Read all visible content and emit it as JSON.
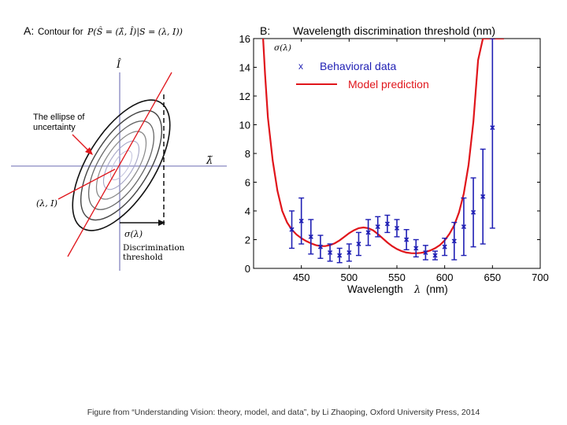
{
  "panel_a": {
    "label": "A:",
    "title_text": "Contour for",
    "title_formula": "P(Ŝ = (λ̂, Î)|S = (λ, I))",
    "y_axis_label": "Î",
    "x_axis_label": "λ̃",
    "ellipse_label_line1": "The ellipse of",
    "ellipse_label_line2": "uncertainty",
    "point_label": "(λ, I)",
    "sigma_label": "σ(λ)",
    "threshold_line1": "Discrimination",
    "threshold_line2": "threshold"
  },
  "chart_data": {
    "type": "line",
    "panel_label": "B:",
    "title": "Wavelength discrimination threshold (nm)",
    "y_corner_label": "σ(λ)",
    "xlabel": "Wavelength",
    "xlabel_symbol": "λ",
    "xlabel_unit": "(nm)",
    "xlim": [
      400,
      700
    ],
    "ylim": [
      0,
      16
    ],
    "x_ticks": [
      450,
      500,
      550,
      600,
      650,
      700
    ],
    "y_ticks": [
      0,
      2,
      4,
      6,
      8,
      10,
      12,
      14,
      16
    ],
    "legend": {
      "placement": "top-left",
      "entries": [
        {
          "marker": "x",
          "label": "Behavioral data",
          "color": "#1f1fb4"
        },
        {
          "marker": "line",
          "label": "Model prediction",
          "color": "#e0151b"
        }
      ]
    },
    "series": [
      {
        "name": "Behavioral data",
        "type": "scatter-errorbar",
        "color": "#1f1fb4",
        "points": [
          {
            "x": 440,
            "y": 2.7,
            "err": 1.3
          },
          {
            "x": 450,
            "y": 3.3,
            "err": 1.6
          },
          {
            "x": 460,
            "y": 2.2,
            "err": 1.2
          },
          {
            "x": 470,
            "y": 1.5,
            "err": 0.8
          },
          {
            "x": 480,
            "y": 1.1,
            "err": 0.6
          },
          {
            "x": 490,
            "y": 0.9,
            "err": 0.5
          },
          {
            "x": 500,
            "y": 1.1,
            "err": 0.6
          },
          {
            "x": 510,
            "y": 1.7,
            "err": 0.8
          },
          {
            "x": 520,
            "y": 2.5,
            "err": 0.9
          },
          {
            "x": 530,
            "y": 2.9,
            "err": 0.7
          },
          {
            "x": 540,
            "y": 3.1,
            "err": 0.6
          },
          {
            "x": 550,
            "y": 2.8,
            "err": 0.6
          },
          {
            "x": 560,
            "y": 2.0,
            "err": 0.7
          },
          {
            "x": 570,
            "y": 1.4,
            "err": 0.6
          },
          {
            "x": 580,
            "y": 1.1,
            "err": 0.5
          },
          {
            "x": 590,
            "y": 0.9,
            "err": 0.3
          },
          {
            "x": 600,
            "y": 1.5,
            "err": 0.6
          },
          {
            "x": 610,
            "y": 1.9,
            "err": 1.3
          },
          {
            "x": 620,
            "y": 2.9,
            "err": 2.0
          },
          {
            "x": 630,
            "y": 3.9,
            "err": 2.4
          },
          {
            "x": 640,
            "y": 5.0,
            "err": 3.3
          },
          {
            "x": 650,
            "y": 9.8,
            "err": 7.0
          }
        ]
      },
      {
        "name": "Model prediction",
        "type": "line",
        "color": "#e0151b",
        "x": [
          410,
          412,
          415,
          420,
          425,
          430,
          435,
          440,
          445,
          450,
          455,
          460,
          465,
          470,
          475,
          480,
          485,
          490,
          495,
          500,
          505,
          510,
          515,
          520,
          525,
          530,
          535,
          540,
          545,
          550,
          555,
          560,
          565,
          570,
          575,
          580,
          585,
          590,
          595,
          600,
          605,
          610,
          615,
          620,
          625,
          630,
          635,
          640,
          645,
          650,
          653,
          656,
          659,
          662
        ],
        "y": [
          16.0,
          13.5,
          10.5,
          7.5,
          5.4,
          4.0,
          3.2,
          2.7,
          2.35,
          2.1,
          1.9,
          1.75,
          1.62,
          1.55,
          1.55,
          1.62,
          1.75,
          1.95,
          2.2,
          2.45,
          2.65,
          2.8,
          2.85,
          2.8,
          2.65,
          2.4,
          2.1,
          1.8,
          1.55,
          1.35,
          1.2,
          1.1,
          1.06,
          1.05,
          1.08,
          1.14,
          1.25,
          1.4,
          1.62,
          1.95,
          2.4,
          3.0,
          3.9,
          5.2,
          7.2,
          10.2,
          14.5,
          16.0,
          16.0,
          16.0,
          16.0,
          16.0,
          16.0,
          16.0
        ]
      }
    ]
  },
  "footer": {
    "caption": "Figure from “Understanding Vision: theory, model, and data”, by Li Zhaoping,  Oxford University Press, 2014"
  }
}
